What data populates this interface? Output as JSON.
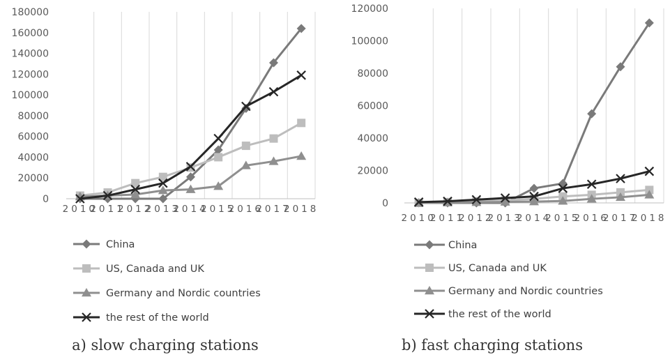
{
  "colors": {
    "China": "#7a7a7a",
    "US, Canada and UK": "#bdbdbd",
    "Germany and Nordic countries": "#8f8f8f",
    "the rest of the world": "#262626",
    "grid": "#d9d9d9",
    "axis": "#bfbfbf"
  },
  "chart_data": [
    {
      "type": "line",
      "title": "a) slow charging stations",
      "caption": "a) slow charging stations",
      "categories": [
        "2010",
        "2011",
        "2012",
        "2013",
        "2014",
        "2015",
        "2016",
        "2017",
        "2018"
      ],
      "ylim": [
        0,
        180000
      ],
      "yticks": [
        "0",
        "20000",
        "40000",
        "60000",
        "80000",
        "100000",
        "120000",
        "140000",
        "160000",
        "180000"
      ],
      "grid": "vertical",
      "legend": "bottom",
      "series": [
        {
          "name": "China",
          "marker": "diamond",
          "values": [
            0,
            0,
            0,
            0,
            21000,
            47000,
            87000,
            131000,
            164000
          ]
        },
        {
          "name": "US, Canada and UK",
          "marker": "square",
          "values": [
            3000,
            6000,
            15000,
            21000,
            30000,
            40000,
            51000,
            58000,
            73000
          ]
        },
        {
          "name": "Germany and Nordic countries",
          "marker": "triangle",
          "values": [
            2000,
            3000,
            4000,
            8000,
            9000,
            12000,
            32000,
            36000,
            41000
          ]
        },
        {
          "name": "the rest of the world",
          "marker": "x",
          "values": [
            0,
            3000,
            9000,
            15000,
            31000,
            58000,
            89000,
            103000,
            119000
          ]
        }
      ]
    },
    {
      "type": "line",
      "title": "b) fast charging stations",
      "caption": "b) fast charging stations",
      "categories": [
        "2010",
        "2011",
        "2012",
        "2013",
        "2014",
        "2015",
        "2016",
        "2017",
        "2018"
      ],
      "ylim": [
        0,
        120000
      ],
      "yticks": [
        "0",
        "20000",
        "40000",
        "60000",
        "80000",
        "100000",
        "120000"
      ],
      "grid": "vertical",
      "legend": "bottom",
      "series": [
        {
          "name": "China",
          "marker": "diamond",
          "values": [
            0,
            0,
            0,
            0,
            9000,
            12000,
            55000,
            84000,
            111000
          ]
        },
        {
          "name": "US, Canada and UK",
          "marker": "square",
          "values": [
            0,
            500,
            1000,
            1500,
            2500,
            4000,
            5000,
            6500,
            8000
          ]
        },
        {
          "name": "Germany and Nordic countries",
          "marker": "triangle",
          "values": [
            0,
            200,
            400,
            600,
            800,
            1200,
            2500,
            3500,
            5000
          ]
        },
        {
          "name": "the rest of the world",
          "marker": "x",
          "values": [
            500,
            1000,
            2000,
            3000,
            4000,
            9000,
            11500,
            15000,
            19500
          ]
        }
      ]
    }
  ]
}
